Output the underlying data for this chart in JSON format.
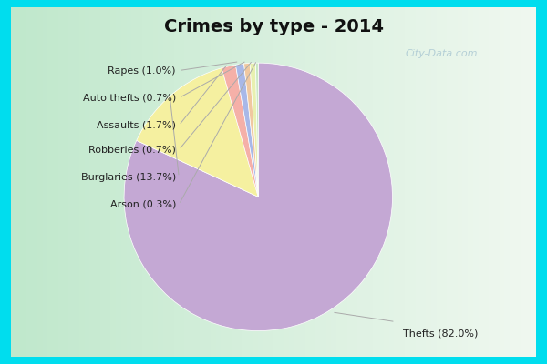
{
  "title": "Crimes by type - 2014",
  "labels": [
    "Thefts",
    "Burglaries",
    "Assaults",
    "Rapes",
    "Auto thefts",
    "Robberies",
    "Arson"
  ],
  "values": [
    82.0,
    13.7,
    1.7,
    1.0,
    0.7,
    0.7,
    0.3
  ],
  "colors": [
    "#C4A8D4",
    "#F5F0A0",
    "#F5B0A8",
    "#A8B8E8",
    "#F0C8A0",
    "#E8F0B0",
    "#C8E8C0"
  ],
  "label_display": [
    "Thefts (82.0%)",
    "Burglaries (13.7%)",
    "Assaults (1.7%)",
    "Rapes (1.0%)",
    "Auto thefts (0.7%)",
    "Robberies (0.7%)",
    "Arson (0.3%)"
  ],
  "border_color": "#00DDEE",
  "bg_color_left": "#C0E8CC",
  "bg_color_right": "#E8F4EC",
  "title_fontsize": 14,
  "watermark": "City-Data.com",
  "label_fontsize": 8
}
